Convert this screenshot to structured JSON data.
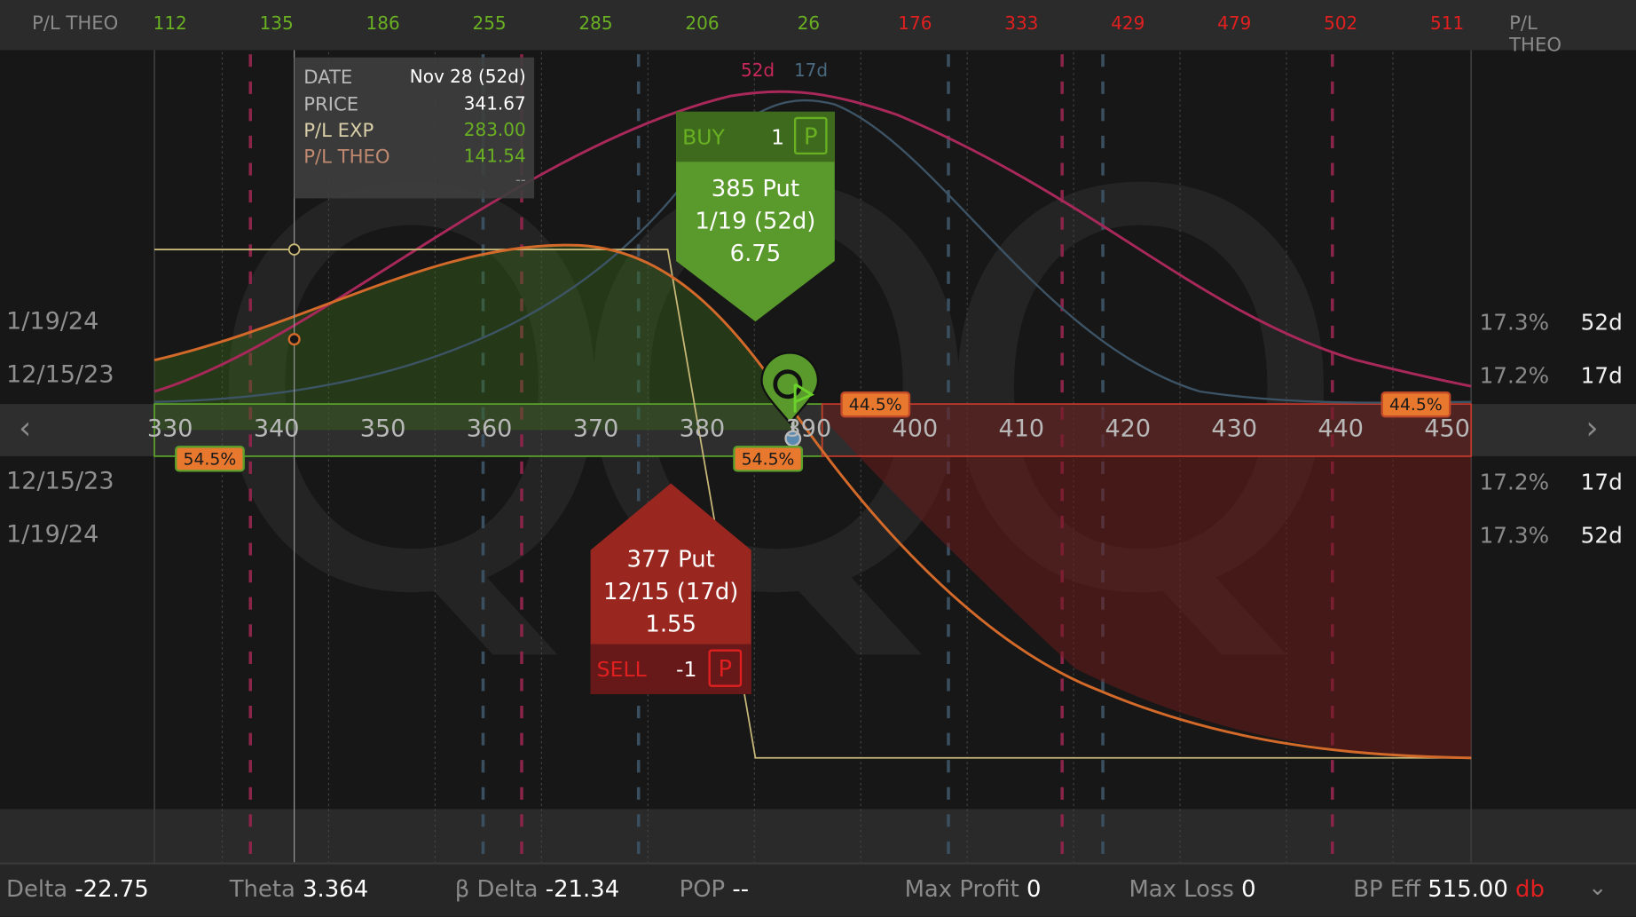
{
  "header": {
    "left_label": "P/L THEO",
    "right_label": "P/L THEO",
    "pl_values": [
      {
        "value": "112",
        "color": "#6ab023"
      },
      {
        "value": "135",
        "color": "#6ab023"
      },
      {
        "value": "186",
        "color": "#6ab023"
      },
      {
        "value": "255",
        "color": "#6ab023"
      },
      {
        "value": "285",
        "color": "#6ab023"
      },
      {
        "value": "206",
        "color": "#6ab023"
      },
      {
        "value": "26",
        "color": "#6ab023"
      },
      {
        "value": "176",
        "color": "#e02020"
      },
      {
        "value": "333",
        "color": "#e02020"
      },
      {
        "value": "429",
        "color": "#e02020"
      },
      {
        "value": "479",
        "color": "#e02020"
      },
      {
        "value": "502",
        "color": "#e02020"
      },
      {
        "value": "511",
        "color": "#e02020"
      }
    ]
  },
  "watermark": "QQQ",
  "price_axis": {
    "ticks": [
      "330",
      "340",
      "350",
      "360",
      "370",
      "380",
      "390",
      "400",
      "410",
      "420",
      "430",
      "440",
      "450"
    ],
    "left_arrow": "chevron-left-icon",
    "right_arrow": "chevron-right-icon"
  },
  "expirations": {
    "upper": [
      {
        "date": "1/19/24",
        "vol": "17.3%",
        "dte": "52d"
      },
      {
        "date": "12/15/23",
        "vol": "17.2%",
        "dte": "17d"
      }
    ],
    "lower": [
      {
        "date": "12/15/23",
        "vol": "17.2%",
        "dte": "17d"
      },
      {
        "date": "1/19/24",
        "vol": "17.3%",
        "dte": "52d"
      }
    ]
  },
  "curve_labels": {
    "d52": "52d",
    "d17": "17d",
    "d52_color": "#c8285a",
    "d17_color": "#4a6a80"
  },
  "tooltip": {
    "rows": [
      {
        "key": "DATE",
        "value": "Nov 28 (52d)"
      },
      {
        "key": "PRICE",
        "value": "341.67"
      },
      {
        "key": "P/L EXP",
        "value": "283.00"
      },
      {
        "key": "P/L THEO",
        "value": "141.54"
      }
    ],
    "extra": "--"
  },
  "buy_order": {
    "side": "BUY",
    "qty": "1",
    "type": "P",
    "line1": "385 Put",
    "line2": "1/19 (52d)",
    "line3": "6.75"
  },
  "sell_order": {
    "side": "SELL",
    "qty": "-1",
    "type": "P",
    "line1": "377 Put",
    "line2": "12/15 (17d)",
    "line3": "1.55"
  },
  "probabilities": {
    "below_left": "54.5%",
    "below_right": "54.5%",
    "above_left": "44.5%",
    "above_right": "44.5%"
  },
  "status": {
    "delta_label": "Delta",
    "delta": "-22.75",
    "theta_label": "Theta",
    "theta": "3.364",
    "beta_delta_label": "β Delta",
    "beta_delta": "-21.34",
    "pop_label": "POP",
    "pop": "--",
    "max_profit_label": "Max Profit",
    "max_profit": "0",
    "max_loss_label": "Max Loss",
    "max_loss": "0",
    "bp_eff_label": "BP Eff",
    "bp_eff": "515.00",
    "bp_eff_suffix": "db",
    "expand_icon": "chevron-down-icon"
  }
}
